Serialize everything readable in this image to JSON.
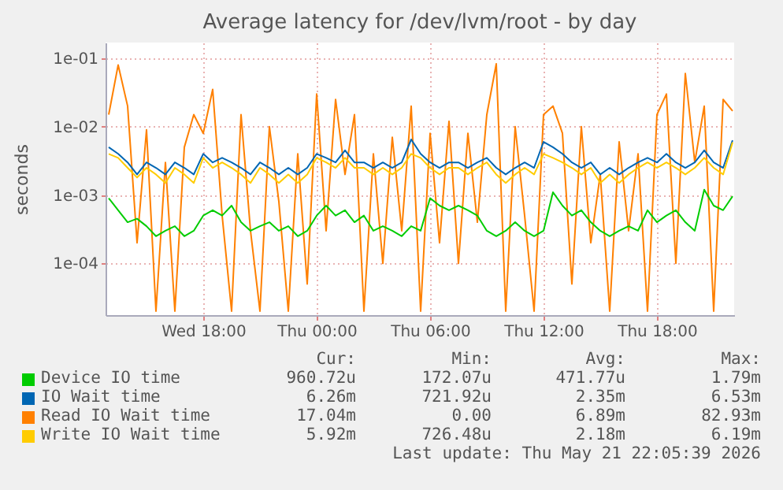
{
  "chart_data": {
    "type": "line",
    "title": "Average latency for /dev/lvm/root - by day",
    "ylabel": "seconds",
    "log": true,
    "grid": true,
    "legend": "bottom",
    "xlim": [
      "2026-05-20T12:50",
      "2026-05-21T22:05"
    ],
    "xticks": [
      {
        "value": "2026-05-20T18:00",
        "label": "Wed 18:00"
      },
      {
        "value": "2026-05-21T00:00",
        "label": "Thu 00:00"
      },
      {
        "value": "2026-05-21T06:00",
        "label": "Thu 06:00"
      },
      {
        "value": "2026-05-21T12:00",
        "label": "Thu 12:00"
      },
      {
        "value": "2026-05-21T18:00",
        "label": "Thu 18:00"
      }
    ],
    "ylim": [
      1.75e-05,
      0.17
    ],
    "yticks": [
      {
        "value": 0.0001,
        "label": "1e-04"
      },
      {
        "value": 0.001,
        "label": "1e-03"
      },
      {
        "value": 0.01,
        "label": "1e-02"
      },
      {
        "value": 0.1,
        "label": "1e-01"
      }
    ],
    "x": [
      "2026-05-20T13:00",
      "2026-05-20T13:30",
      "2026-05-20T14:00",
      "2026-05-20T14:30",
      "2026-05-20T15:00",
      "2026-05-20T15:30",
      "2026-05-20T16:00",
      "2026-05-20T16:30",
      "2026-05-20T17:00",
      "2026-05-20T17:30",
      "2026-05-20T18:00",
      "2026-05-20T18:30",
      "2026-05-20T19:00",
      "2026-05-20T19:30",
      "2026-05-20T20:00",
      "2026-05-20T20:30",
      "2026-05-20T21:00",
      "2026-05-20T21:30",
      "2026-05-20T22:00",
      "2026-05-20T22:30",
      "2026-05-20T23:00",
      "2026-05-20T23:30",
      "2026-05-21T00:00",
      "2026-05-21T00:30",
      "2026-05-21T01:00",
      "2026-05-21T01:30",
      "2026-05-21T02:00",
      "2026-05-21T02:30",
      "2026-05-21T03:00",
      "2026-05-21T03:30",
      "2026-05-21T04:00",
      "2026-05-21T04:30",
      "2026-05-21T05:00",
      "2026-05-21T05:30",
      "2026-05-21T06:00",
      "2026-05-21T06:30",
      "2026-05-21T07:00",
      "2026-05-21T07:30",
      "2026-05-21T08:00",
      "2026-05-21T08:30",
      "2026-05-21T09:00",
      "2026-05-21T09:30",
      "2026-05-21T10:00",
      "2026-05-21T10:30",
      "2026-05-21T11:00",
      "2026-05-21T11:30",
      "2026-05-21T12:00",
      "2026-05-21T12:30",
      "2026-05-21T13:00",
      "2026-05-21T13:30",
      "2026-05-21T14:00",
      "2026-05-21T14:30",
      "2026-05-21T15:00",
      "2026-05-21T15:30",
      "2026-05-21T16:00",
      "2026-05-21T16:30",
      "2026-05-21T17:00",
      "2026-05-21T17:30",
      "2026-05-21T18:00",
      "2026-05-21T18:30",
      "2026-05-21T19:00",
      "2026-05-21T19:30",
      "2026-05-21T20:00",
      "2026-05-21T20:30",
      "2026-05-21T21:00",
      "2026-05-21T21:30",
      "2026-05-21T22:00"
    ],
    "series": [
      {
        "name": "Device IO time",
        "color": "#00cc00",
        "values": [
          0.0009,
          0.0006,
          0.0004,
          0.00045,
          0.00035,
          0.00025,
          0.0003,
          0.00035,
          0.00025,
          0.0003,
          0.0005,
          0.0006,
          0.0005,
          0.0007,
          0.0004,
          0.0003,
          0.00035,
          0.0004,
          0.0003,
          0.00035,
          0.00025,
          0.0003,
          0.0005,
          0.0007,
          0.0005,
          0.0006,
          0.0004,
          0.0005,
          0.0003,
          0.00035,
          0.0003,
          0.00025,
          0.00035,
          0.0003,
          0.0009,
          0.0007,
          0.0006,
          0.0007,
          0.0006,
          0.0005,
          0.0003,
          0.00025,
          0.0003,
          0.0004,
          0.0003,
          0.00025,
          0.0003,
          0.0011,
          0.0007,
          0.0005,
          0.0006,
          0.0004,
          0.0003,
          0.00025,
          0.0003,
          0.00035,
          0.0003,
          0.0006,
          0.0004,
          0.0005,
          0.0006,
          0.0004,
          0.0003,
          0.0012,
          0.0007,
          0.0006,
          0.00096
        ]
      },
      {
        "name": "IO Wait time",
        "color": "#0066b3",
        "values": [
          0.005,
          0.004,
          0.003,
          0.002,
          0.003,
          0.0025,
          0.002,
          0.003,
          0.0025,
          0.002,
          0.004,
          0.003,
          0.0035,
          0.003,
          0.0025,
          0.002,
          0.003,
          0.0025,
          0.002,
          0.0025,
          0.002,
          0.0025,
          0.004,
          0.0035,
          0.003,
          0.0045,
          0.003,
          0.003,
          0.0025,
          0.003,
          0.0025,
          0.003,
          0.0065,
          0.004,
          0.003,
          0.0025,
          0.003,
          0.003,
          0.0025,
          0.003,
          0.0035,
          0.0025,
          0.002,
          0.0025,
          0.003,
          0.0025,
          0.006,
          0.005,
          0.004,
          0.003,
          0.0025,
          0.003,
          0.002,
          0.0025,
          0.002,
          0.0025,
          0.003,
          0.0035,
          0.003,
          0.004,
          0.003,
          0.0025,
          0.003,
          0.0045,
          0.003,
          0.0025,
          0.0063
        ]
      },
      {
        "name": "Read IO Wait time",
        "color": "#ff8000",
        "values": [
          0.015,
          0.08,
          0.02,
          0.0002,
          0.009,
          2e-05,
          0.003,
          2e-05,
          0.005,
          0.015,
          0.008,
          0.035,
          0.0005,
          2e-05,
          0.015,
          0.0003,
          2e-05,
          0.01,
          0.0008,
          2e-05,
          0.004,
          5e-05,
          0.03,
          0.0003,
          0.025,
          0.002,
          0.015,
          2e-05,
          0.004,
          0.0001,
          0.007,
          0.0003,
          0.02,
          2e-05,
          0.008,
          0.0002,
          0.012,
          0.0001,
          0.008,
          0.0004,
          0.015,
          0.083,
          2e-05,
          0.01,
          0.0005,
          2e-05,
          0.015,
          0.02,
          0.008,
          5e-05,
          0.01,
          0.0002,
          0.002,
          2e-05,
          0.006,
          0.0003,
          0.004,
          2e-05,
          0.015,
          0.03,
          0.0001,
          0.06,
          0.003,
          0.02,
          2e-05,
          0.025,
          0.017
        ]
      },
      {
        "name": "Write IO Wait time",
        "color": "#ffcc00",
        "values": [
          0.004,
          0.0035,
          0.0025,
          0.0018,
          0.0025,
          0.002,
          0.0015,
          0.0025,
          0.002,
          0.0015,
          0.0035,
          0.0025,
          0.003,
          0.0025,
          0.002,
          0.0015,
          0.0025,
          0.002,
          0.0015,
          0.002,
          0.0015,
          0.002,
          0.0035,
          0.003,
          0.0025,
          0.0035,
          0.0025,
          0.0025,
          0.002,
          0.0025,
          0.002,
          0.0025,
          0.004,
          0.0035,
          0.0025,
          0.002,
          0.0025,
          0.0025,
          0.002,
          0.0025,
          0.003,
          0.002,
          0.0015,
          0.002,
          0.0025,
          0.002,
          0.004,
          0.0035,
          0.003,
          0.0025,
          0.002,
          0.0025,
          0.0015,
          0.002,
          0.0015,
          0.002,
          0.0025,
          0.003,
          0.0025,
          0.003,
          0.0025,
          0.002,
          0.0025,
          0.0035,
          0.0025,
          0.002,
          0.0059
        ]
      }
    ],
    "annotations": [
      "Cur:",
      "Min:",
      "Avg:",
      "Max:",
      "960.72u",
      "172.07u",
      "471.77u",
      "1.79m",
      "6.26m",
      "721.92u",
      "2.35m",
      "6.53m",
      "17.04m",
      "0.00",
      "6.89m",
      "82.93m",
      "5.92m",
      "726.48u",
      "2.18m",
      "6.19m",
      "Last update: Thu May 21 22:05:39 2026"
    ]
  }
}
